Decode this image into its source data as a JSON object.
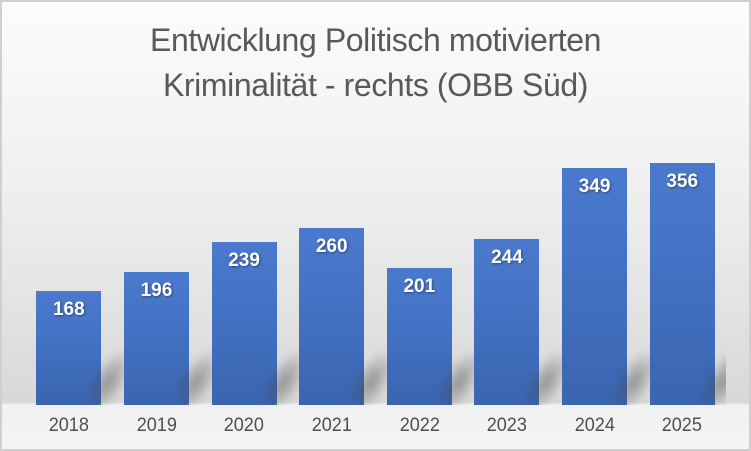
{
  "title": {
    "line1": "Entwicklung Politisch motivierten",
    "line2": "Kriminalität - rechts (OBB Süd)"
  },
  "chart_data": {
    "type": "bar",
    "categories": [
      "2018",
      "2019",
      "2020",
      "2021",
      "2022",
      "2023",
      "2024",
      "2025"
    ],
    "values": [
      168,
      196,
      239,
      260,
      201,
      244,
      349,
      356
    ],
    "title": "Entwicklung Politisch motivierten Kriminalität - rechts (OBB Süd)",
    "xlabel": "",
    "ylabel": "",
    "ylim": [
      0,
      400
    ],
    "grid": false,
    "legend": false,
    "data_labels_position": "inside-end",
    "bar_color": "#4472C4",
    "bar_gradient_top": "#4B79CD",
    "bar_gradient_bottom": "#3A65B0",
    "data_label_color": "#FFFFFF",
    "axis_text_color": "#4F4F4F",
    "title_color": "#595959",
    "background_top": "#FCFCFC",
    "background_bottom": "#D8D8D8",
    "footer_background": "#F2F2F2"
  }
}
